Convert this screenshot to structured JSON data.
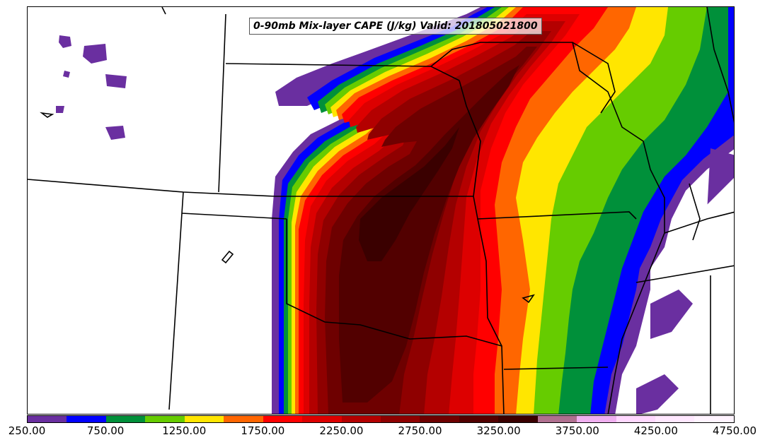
{
  "map": {
    "title": "0-90mb Mix-layer CAPE (J/kg) Valid: 201805021800",
    "field": "0-90mb Mix-layer CAPE",
    "units": "J/kg",
    "valid_time": "201805021800",
    "region": "Central/Southern US Plains",
    "layers": [
      "CAPE filled contours",
      "state boundaries"
    ]
  },
  "colorbar": {
    "colors": [
      "#6a2fa0",
      "#0000ff",
      "#00903a",
      "#66cc00",
      "#ffe600",
      "#ff6600",
      "#ff0000",
      "#dd0000",
      "#b40000",
      "#8f0000",
      "#6e0000",
      "#520000",
      "#3a0000",
      "#b07090",
      "#f0b0f0",
      "#ffd8ff",
      "#ffe8ff",
      "#fff4ff"
    ],
    "tick_labels": [
      "250.00",
      "750.00",
      "1250.00",
      "1750.00",
      "2250.00",
      "2750.00",
      "3250.00",
      "3750.00",
      "4250.00",
      "4750.00"
    ]
  }
}
